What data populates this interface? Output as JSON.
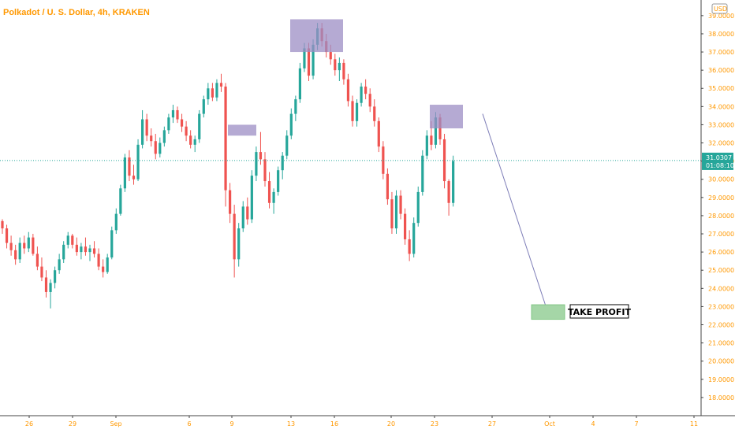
{
  "header": {
    "title": "Polkadot / U. S. Dollar, 4h, KRAKEN"
  },
  "colors": {
    "up": "#26a69a",
    "down": "#ef5350",
    "axis": "#ff9800",
    "price_label_bg": "#26a69a",
    "zone_fill": "#9c8ec4",
    "tp_fill": "#a5d6a7",
    "line": "#7e7eb8"
  },
  "chart_data": {
    "type": "candlestick",
    "title": "Polkadot / U. S. Dollar, 4h, KRAKEN",
    "y_axis": {
      "unit_label": "USD",
      "range": [
        17.0,
        39.6
      ],
      "ticks": [
        "18.0000",
        "19.0000",
        "20.0000",
        "21.0000",
        "22.0000",
        "23.0000",
        "24.0000",
        "25.0000",
        "26.0000",
        "27.0000",
        "28.0000",
        "29.0000",
        "30.0000",
        "31.0000",
        "32.0000",
        "33.0000",
        "34.0000",
        "35.0000",
        "36.0000",
        "37.0000",
        "38.0000",
        "39.0000"
      ]
    },
    "x_axis": {
      "ticks": [
        "26",
        "29",
        "Sep",
        "6",
        "9",
        "13",
        "16",
        "20",
        "23",
        "27",
        "Oct",
        "4",
        "7",
        "11"
      ]
    },
    "current_price": "31.0307",
    "countdown": "01:08:10",
    "candles": [
      [
        27.7,
        27.8,
        27.0,
        27.3
      ],
      [
        27.3,
        27.5,
        26.2,
        26.5
      ],
      [
        26.5,
        26.9,
        25.8,
        26.1
      ],
      [
        26.1,
        26.4,
        25.3,
        25.6
      ],
      [
        25.6,
        26.8,
        25.4,
        26.5
      ],
      [
        26.5,
        26.9,
        25.9,
        26.2
      ],
      [
        26.2,
        27.1,
        26.0,
        26.8
      ],
      [
        26.8,
        27.0,
        25.8,
        25.9
      ],
      [
        25.9,
        26.3,
        25.0,
        25.2
      ],
      [
        25.2,
        25.7,
        24.4,
        24.6
      ],
      [
        24.6,
        25.0,
        23.5,
        23.8
      ],
      [
        23.8,
        24.5,
        22.9,
        24.3
      ],
      [
        24.3,
        25.2,
        24.0,
        25.0
      ],
      [
        25.0,
        25.9,
        24.8,
        25.6
      ],
      [
        25.6,
        26.6,
        25.4,
        26.4
      ],
      [
        26.4,
        27.1,
        26.2,
        26.9
      ],
      [
        26.9,
        27.0,
        26.2,
        26.4
      ],
      [
        26.4,
        26.8,
        25.8,
        26.0
      ],
      [
        26.0,
        26.5,
        25.6,
        26.3
      ],
      [
        26.3,
        26.8,
        25.8,
        26.0
      ],
      [
        26.0,
        26.4,
        25.5,
        26.2
      ],
      [
        26.2,
        26.6,
        25.7,
        25.9
      ],
      [
        25.9,
        26.2,
        25.0,
        25.2
      ],
      [
        25.2,
        25.6,
        24.6,
        24.9
      ],
      [
        24.9,
        25.9,
        24.8,
        25.7
      ],
      [
        25.7,
        27.4,
        25.6,
        27.2
      ],
      [
        27.2,
        28.4,
        27.0,
        28.1
      ],
      [
        28.1,
        29.7,
        28.0,
        29.5
      ],
      [
        29.5,
        31.4,
        29.3,
        31.2
      ],
      [
        31.2,
        31.6,
        29.9,
        30.2
      ],
      [
        30.2,
        30.8,
        29.7,
        30.0
      ],
      [
        30.0,
        32.2,
        29.9,
        31.9
      ],
      [
        31.9,
        33.8,
        31.7,
        33.3
      ],
      [
        33.3,
        33.6,
        32.1,
        32.4
      ],
      [
        32.4,
        32.8,
        31.8,
        32.1
      ],
      [
        32.1,
        32.5,
        31.1,
        31.4
      ],
      [
        31.4,
        32.3,
        31.2,
        32.0
      ],
      [
        32.0,
        32.9,
        31.8,
        32.7
      ],
      [
        32.7,
        33.6,
        32.5,
        33.4
      ],
      [
        33.4,
        34.1,
        33.1,
        33.8
      ],
      [
        33.8,
        34.0,
        33.1,
        33.3
      ],
      [
        33.3,
        33.6,
        32.6,
        32.9
      ],
      [
        32.9,
        33.2,
        32.1,
        32.4
      ],
      [
        32.4,
        32.7,
        31.7,
        31.9
      ],
      [
        31.9,
        32.4,
        31.5,
        32.2
      ],
      [
        32.2,
        33.8,
        32.0,
        33.6
      ],
      [
        33.6,
        34.6,
        33.4,
        34.4
      ],
      [
        34.4,
        35.3,
        34.1,
        35.0
      ],
      [
        35.0,
        35.3,
        34.3,
        34.5
      ],
      [
        34.5,
        35.5,
        34.3,
        35.3
      ],
      [
        35.3,
        35.8,
        34.8,
        35.1
      ],
      [
        35.1,
        35.3,
        28.5,
        29.4
      ],
      [
        29.4,
        29.8,
        27.6,
        28.1
      ],
      [
        28.1,
        28.6,
        24.6,
        25.6
      ],
      [
        25.6,
        27.6,
        25.2,
        27.3
      ],
      [
        27.3,
        28.8,
        27.1,
        28.5
      ],
      [
        28.5,
        29.0,
        27.5,
        27.8
      ],
      [
        27.8,
        30.5,
        27.6,
        30.2
      ],
      [
        30.2,
        31.8,
        29.9,
        31.5
      ],
      [
        31.5,
        32.6,
        30.8,
        31.1
      ],
      [
        31.1,
        31.5,
        29.6,
        29.9
      ],
      [
        29.9,
        30.4,
        28.4,
        28.7
      ],
      [
        28.7,
        29.5,
        28.1,
        29.3
      ],
      [
        29.3,
        30.7,
        29.1,
        30.5
      ],
      [
        30.5,
        31.5,
        30.0,
        31.3
      ],
      [
        31.3,
        32.7,
        31.1,
        32.4
      ],
      [
        32.4,
        33.9,
        32.2,
        33.6
      ],
      [
        33.6,
        34.6,
        33.2,
        34.4
      ],
      [
        34.4,
        36.4,
        34.2,
        36.1
      ],
      [
        36.1,
        37.5,
        35.9,
        37.2
      ],
      [
        37.2,
        37.5,
        35.4,
        35.7
      ],
      [
        35.7,
        37.7,
        35.5,
        37.4
      ],
      [
        37.4,
        38.6,
        37.1,
        38.3
      ],
      [
        38.3,
        38.6,
        37.3,
        37.6
      ],
      [
        37.6,
        38.0,
        36.7,
        37.0
      ],
      [
        37.0,
        37.4,
        36.3,
        36.6
      ],
      [
        36.6,
        36.9,
        35.7,
        36.0
      ],
      [
        36.0,
        36.7,
        35.4,
        36.4
      ],
      [
        36.4,
        36.6,
        35.2,
        35.5
      ],
      [
        35.5,
        35.8,
        34.0,
        34.3
      ],
      [
        34.3,
        34.6,
        32.9,
        33.2
      ],
      [
        33.2,
        34.4,
        32.9,
        34.2
      ],
      [
        34.2,
        35.3,
        34.0,
        35.1
      ],
      [
        35.1,
        35.5,
        34.4,
        34.7
      ],
      [
        34.7,
        35.0,
        33.7,
        34.0
      ],
      [
        34.0,
        34.4,
        32.9,
        33.2
      ],
      [
        33.2,
        33.4,
        31.5,
        31.8
      ],
      [
        31.8,
        32.1,
        30.0,
        30.3
      ],
      [
        30.3,
        30.6,
        28.6,
        28.9
      ],
      [
        28.9,
        29.3,
        27.0,
        27.3
      ],
      [
        27.3,
        29.4,
        27.0,
        29.1
      ],
      [
        29.1,
        29.4,
        27.8,
        28.1
      ],
      [
        28.1,
        28.4,
        26.4,
        26.7
      ],
      [
        26.7,
        27.2,
        25.5,
        25.9
      ],
      [
        25.9,
        27.9,
        25.7,
        27.6
      ],
      [
        27.6,
        29.6,
        27.4,
        29.3
      ],
      [
        29.3,
        31.6,
        29.1,
        31.3
      ],
      [
        31.3,
        32.7,
        31.1,
        32.4
      ],
      [
        32.4,
        33.2,
        31.6,
        31.9
      ],
      [
        31.9,
        33.7,
        31.7,
        33.4
      ],
      [
        33.4,
        33.6,
        31.9,
        32.2
      ],
      [
        32.2,
        32.5,
        29.5,
        29.9
      ],
      [
        29.9,
        30.0,
        28.0,
        28.7
      ],
      [
        28.7,
        31.3,
        28.5,
        31.0
      ]
    ],
    "annotations": [
      {
        "type": "rectangle",
        "role": "resistance-zone-1"
      },
      {
        "type": "rectangle",
        "role": "resistance-zone-2"
      },
      {
        "type": "rectangle",
        "role": "resistance-zone-3"
      },
      {
        "type": "trend-line",
        "role": "projection"
      },
      {
        "type": "rectangle",
        "role": "take-profit-zone"
      }
    ],
    "take_profit_label": "TAKE PROFIT",
    "price_range_ylim": [
      17.0,
      39.6
    ]
  }
}
